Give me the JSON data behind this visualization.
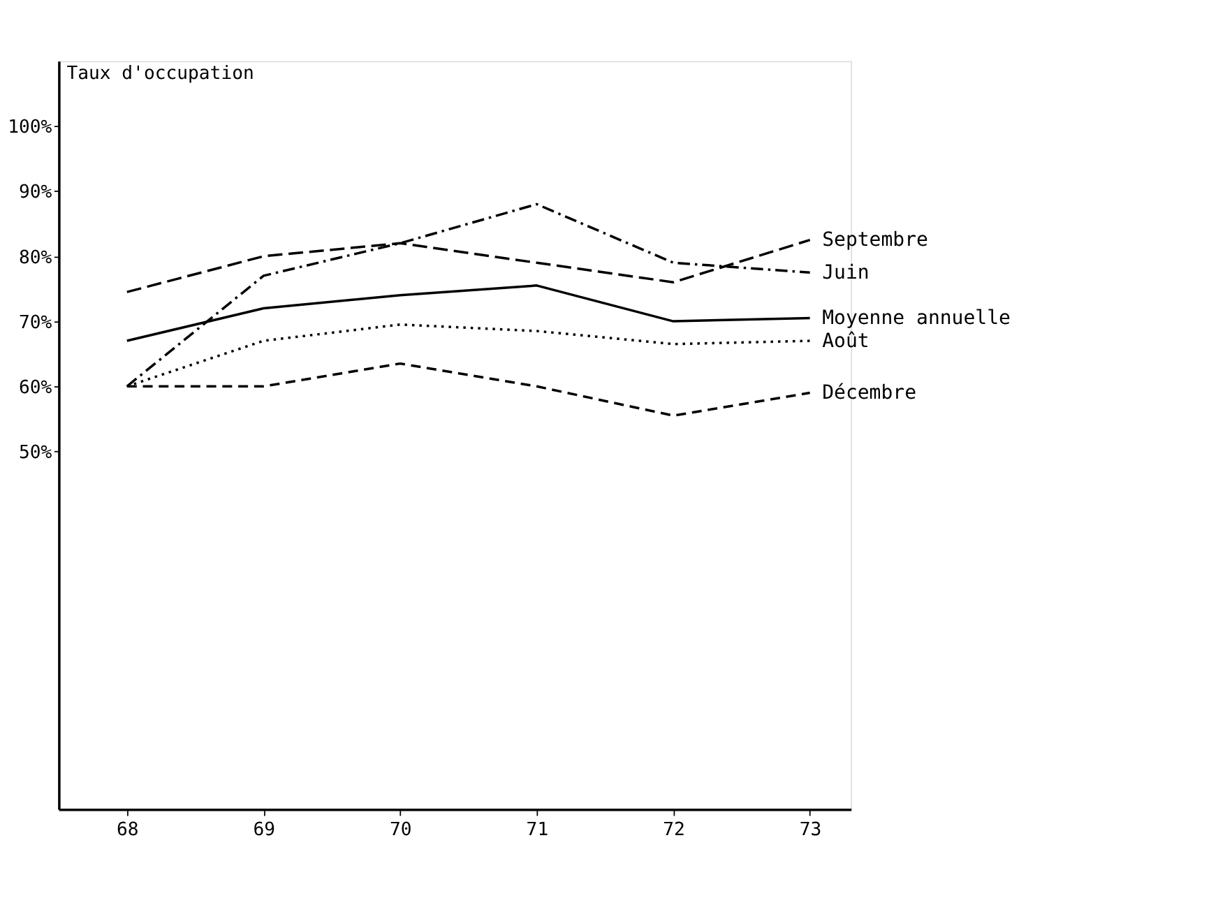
{
  "chart_data": {
    "type": "line",
    "ylabel": "Taux d'occupation",
    "x": [
      68,
      69,
      70,
      71,
      72,
      73
    ],
    "xlim": [
      67.5,
      73.3
    ],
    "xticks": [
      68,
      69,
      70,
      71,
      72,
      73
    ],
    "ylim": [
      -5,
      110
    ],
    "yticks": [
      {
        "value": 50,
        "label": "50%"
      },
      {
        "value": 60,
        "label": "60%"
      },
      {
        "value": 70,
        "label": "70%"
      },
      {
        "value": 80,
        "label": "80%"
      },
      {
        "value": 90,
        "label": "90%"
      },
      {
        "value": 100,
        "label": "100%"
      }
    ],
    "grid": false,
    "legend": false,
    "marker": "none",
    "series": [
      {
        "name": "Septembre",
        "color": "#000000",
        "line_style": "dashed",
        "values": [
          74.5,
          80,
          82,
          79,
          76,
          82.5
        ]
      },
      {
        "name": "Juin",
        "color": "#000000",
        "line_style": "dashdot",
        "values": [
          60,
          77,
          82,
          88,
          79,
          77.5
        ]
      },
      {
        "name": "Moyenne annuelle",
        "color": "#000000",
        "line_style": "solid",
        "values": [
          67,
          72,
          74,
          75.5,
          70,
          70.5
        ]
      },
      {
        "name": "Août",
        "color": "#000000",
        "line_style": "dotted",
        "values": [
          60,
          67,
          69.5,
          68.5,
          66.5,
          67
        ]
      },
      {
        "name": "Décembre",
        "color": "#000000",
        "line_style": "dashed",
        "values": [
          60,
          60,
          63.5,
          60,
          55.5,
          59
        ]
      }
    ]
  }
}
